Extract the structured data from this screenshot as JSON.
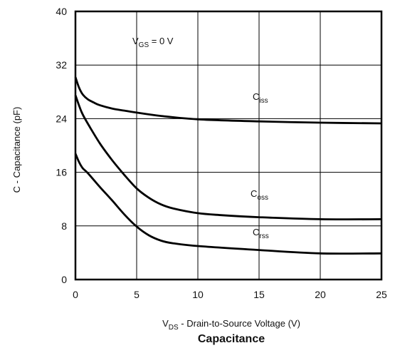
{
  "chart_data": {
    "type": "line",
    "title": "Capacitance",
    "xlabel": {
      "prefix": "V",
      "sub": "DS",
      "rest": " - Drain-to-Source Voltage (V)"
    },
    "ylabel": "C - Capacitance (pF)",
    "xlim": [
      0,
      25
    ],
    "ylim": [
      0,
      40
    ],
    "xticks": [
      0,
      5,
      10,
      15,
      20,
      25
    ],
    "yticks": [
      0,
      8,
      16,
      24,
      32,
      40
    ],
    "grid": true,
    "annotation": {
      "prefix": "V",
      "sub": "GS",
      "rest": " = 0 V"
    },
    "series": [
      {
        "name": "Ciss",
        "label_prefix": "C",
        "label_sub": "iss",
        "x": [
          0,
          0.3,
          0.6,
          1,
          1.5,
          2,
          3,
          4,
          5,
          7,
          10,
          15,
          20,
          25
        ],
        "y": [
          30.2,
          28.6,
          27.6,
          26.9,
          26.4,
          26.0,
          25.5,
          25.2,
          24.9,
          24.4,
          23.9,
          23.6,
          23.4,
          23.3
        ]
      },
      {
        "name": "Coss",
        "label_prefix": "C",
        "label_sub": "oss",
        "x": [
          0,
          0.5,
          1,
          2,
          3,
          4,
          5,
          6,
          7,
          8,
          10,
          12,
          15,
          20,
          25
        ],
        "y": [
          27.5,
          25.0,
          23.3,
          20.3,
          17.8,
          15.6,
          13.6,
          12.2,
          11.2,
          10.6,
          9.9,
          9.6,
          9.3,
          9.0,
          9.0
        ]
      },
      {
        "name": "Crss",
        "label_prefix": "C",
        "label_sub": "rss",
        "x": [
          0,
          0.3,
          0.6,
          1,
          2,
          3,
          4,
          5,
          6,
          7,
          8,
          10,
          15,
          20,
          25
        ],
        "y": [
          18.8,
          17.5,
          16.6,
          15.9,
          13.8,
          11.8,
          9.7,
          7.9,
          6.6,
          5.8,
          5.4,
          5.0,
          4.4,
          3.9,
          3.9
        ]
      }
    ]
  }
}
